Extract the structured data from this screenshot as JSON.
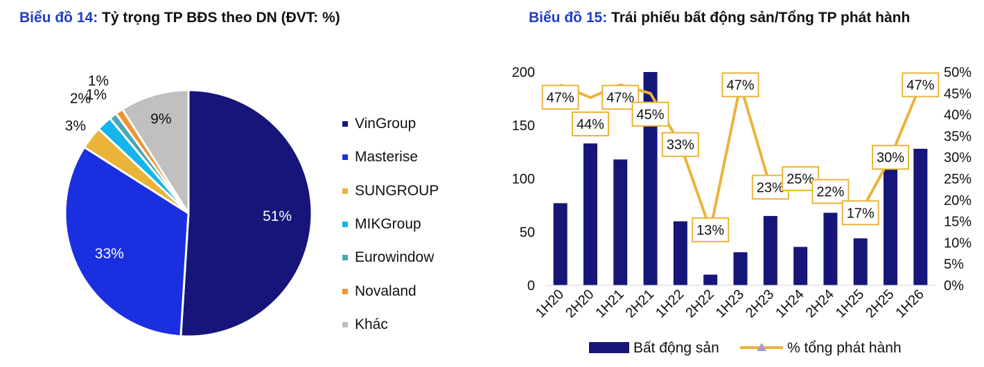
{
  "chart_data": [
    {
      "type": "pie",
      "title_prefix": "Biểu đồ 14:",
      "title": "Tỷ trọng TP BĐS theo DN (ĐVT: %)",
      "slices": [
        {
          "label": "VinGroup",
          "value": 51,
          "display": "51%",
          "color": "#15157a"
        },
        {
          "label": "Masterise",
          "value": 33,
          "display": "33%",
          "color": "#1a2fe0"
        },
        {
          "label": "SUNGROUP",
          "value": 3,
          "display": "3%",
          "color": "#eab33a"
        },
        {
          "label": "MIKGroup",
          "value": 2,
          "display": "2%",
          "color": "#13b5ea"
        },
        {
          "label": "Eurowindow",
          "value": 1,
          "display": "1%",
          "color": "#4aa6b8"
        },
        {
          "label": "Novaland",
          "value": 1,
          "display": "1%",
          "color": "#ee9433"
        },
        {
          "label": "Khác",
          "value": 9,
          "display": "9%",
          "color": "#c0c0c0"
        }
      ],
      "legend_position": "right"
    },
    {
      "type": "bar",
      "title_prefix": "Biểu đồ 15:",
      "title": "Trái phiếu bất động sản/Tổng TP phát hành",
      "categories": [
        "1H20",
        "2H20",
        "1H21",
        "2H21",
        "1H22",
        "2H22",
        "1H23",
        "2H23",
        "1H24",
        "2H24",
        "1H25",
        "2H25",
        "1H26"
      ],
      "series": [
        {
          "name": "Bất động sản",
          "type": "bar",
          "axis": "left",
          "color": "#15157a",
          "values": [
            77,
            133,
            118,
            200,
            60,
            10,
            31,
            65,
            36,
            68,
            44,
            110,
            128
          ]
        },
        {
          "name": "% tổng phát hành",
          "type": "line",
          "axis": "right",
          "color": "#eab33a",
          "values": [
            47,
            44,
            47,
            45,
            33,
            13,
            47,
            23,
            25,
            22,
            17,
            30,
            47
          ],
          "labels": [
            "47%",
            "44%",
            "47%",
            "45%",
            "33%",
            "13%",
            "47%",
            "23%",
            "25%",
            "22%",
            "17%",
            "30%",
            "47%"
          ]
        }
      ],
      "y_left": {
        "min": 0,
        "max": 200,
        "ticks": [
          "0",
          "50",
          "100",
          "150",
          "200"
        ]
      },
      "y_right": {
        "min": 0,
        "max": 50,
        "ticks": [
          "0%",
          "5%",
          "10%",
          "15%",
          "20%",
          "25%",
          "30%",
          "35%",
          "40%",
          "45%",
          "50%"
        ]
      },
      "grid": false,
      "legend_position": "bottom"
    }
  ]
}
